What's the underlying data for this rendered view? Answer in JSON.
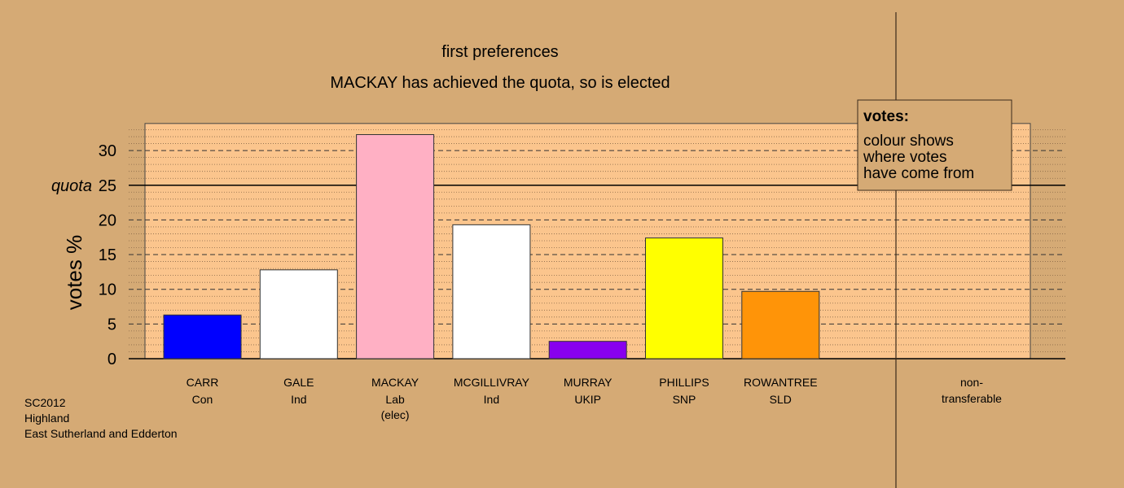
{
  "chart_data": {
    "type": "bar",
    "title": "first preferences",
    "subtitle": "MACKAY has achieved the quota, so is elected",
    "ylabel": "votes %",
    "ylim": [
      0,
      33.9
    ],
    "yticks": [
      0,
      5,
      10,
      15,
      20,
      25,
      30
    ],
    "quota": {
      "value": 25,
      "label": "quota"
    },
    "categories": [
      {
        "name": "CARR",
        "party": "Con",
        "note": ""
      },
      {
        "name": "GALE",
        "party": "Ind",
        "note": ""
      },
      {
        "name": "MACKAY",
        "party": "Lab",
        "note": "(elec)"
      },
      {
        "name": "MCGILLIVRAY",
        "party": "Ind",
        "note": ""
      },
      {
        "name": "MURRAY",
        "party": "UKIP",
        "note": ""
      },
      {
        "name": "PHILLIPS",
        "party": "SNP",
        "note": ""
      },
      {
        "name": "ROWANTREE",
        "party": "SLD",
        "note": ""
      }
    ],
    "values": [
      6.3,
      12.8,
      32.3,
      19.3,
      2.5,
      17.4,
      9.7
    ],
    "colors": [
      "#0000ff",
      "#ffffff",
      "#ffb0c4",
      "#ffffff",
      "#8800ee",
      "#ffff00",
      "#ff9408"
    ],
    "non_transferable": {
      "label": "non-\ntransferable",
      "value": 0
    },
    "legend": {
      "title": "votes:",
      "lines": [
        "colour shows",
        "where votes",
        "have come from"
      ],
      "position": "top-right"
    },
    "grid": true,
    "background": "#d5aa75",
    "plot_background": "#fbc58d"
  },
  "footer": {
    "lines": [
      "SC2012",
      "Highland",
      "East Sutherland and Edderton"
    ]
  }
}
